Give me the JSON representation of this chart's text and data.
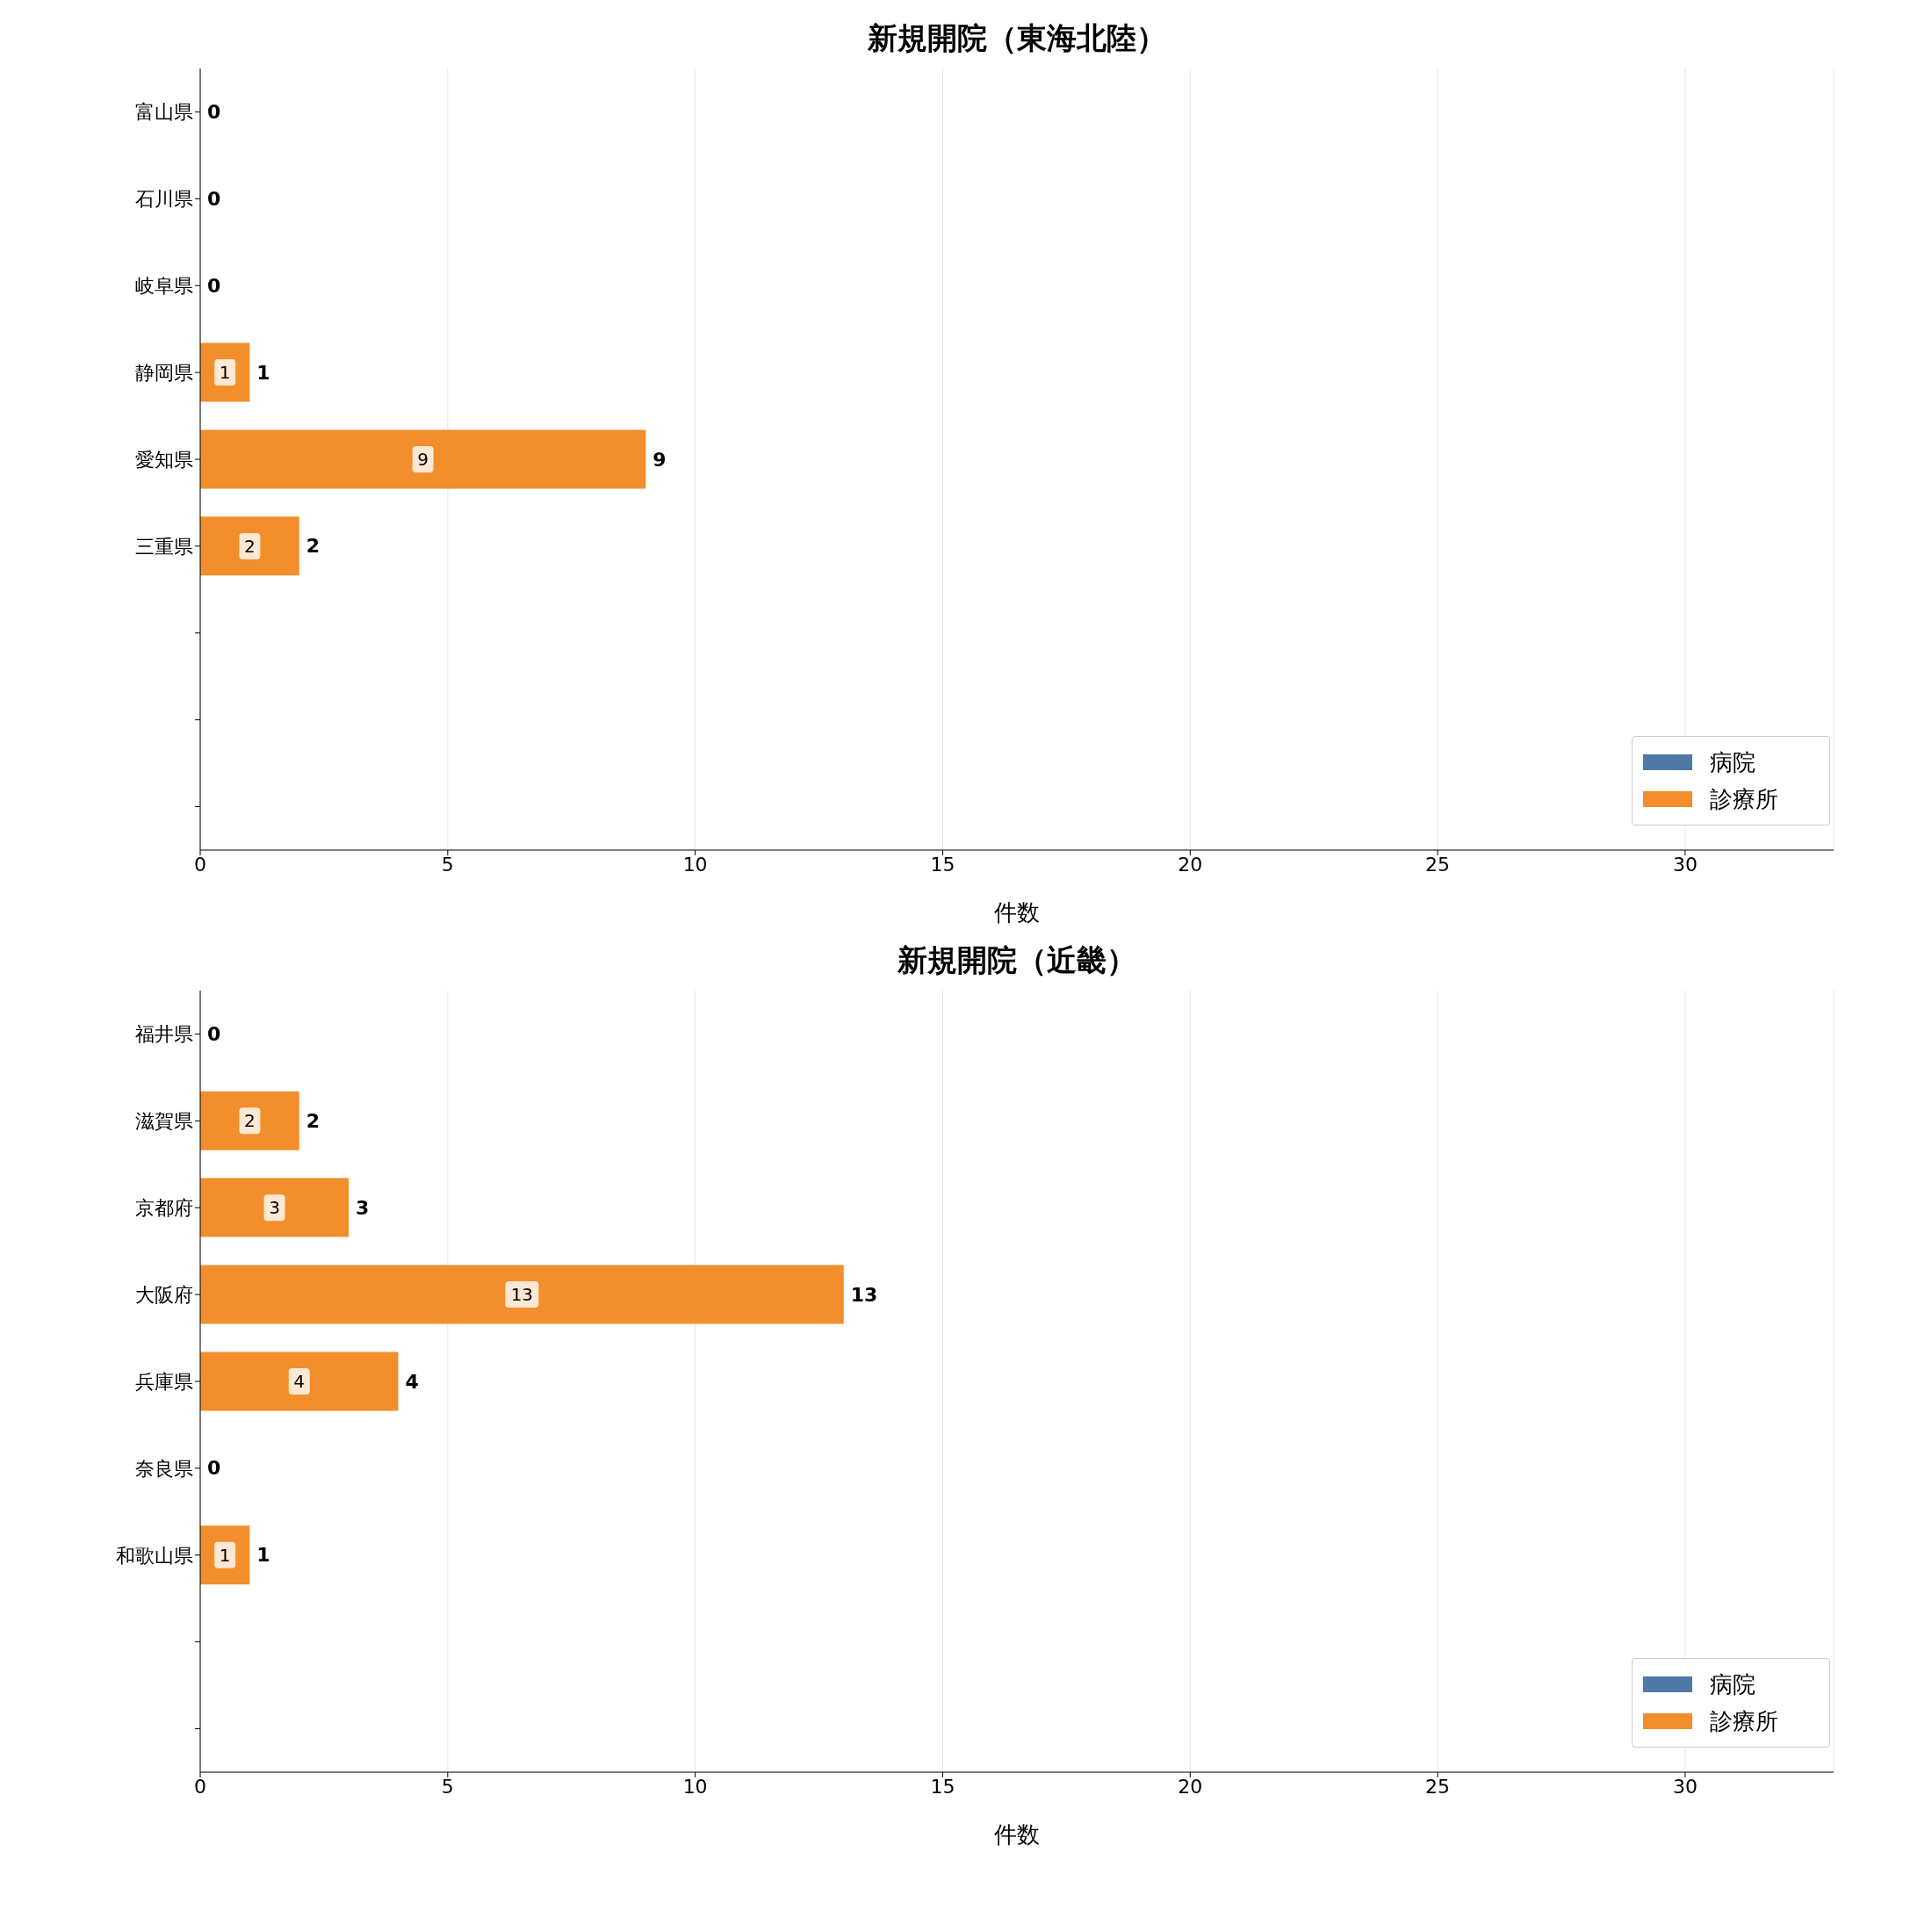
{
  "chart_data": [
    {
      "type": "bar",
      "orientation": "horizontal",
      "stacked": true,
      "title": "新規開院（東海北陸）",
      "xlabel": "件数",
      "categories": [
        "富山県",
        "石川県",
        "岐阜県",
        "静岡県",
        "愛知県",
        "三重県",
        null,
        null,
        null
      ],
      "series": [
        {
          "name": "病院",
          "color": "#4e79a7",
          "values": [
            0,
            0,
            0,
            0,
            0,
            0,
            null,
            null,
            null
          ]
        },
        {
          "name": "診療所",
          "color": "#f28e2b",
          "values": [
            0,
            0,
            0,
            1,
            9,
            2,
            null,
            null,
            null
          ],
          "value_labels": [
            null,
            null,
            null,
            "1",
            "9",
            "2",
            null,
            null,
            null
          ]
        }
      ],
      "totals": [
        "0",
        "0",
        "0",
        "1",
        "9",
        "2",
        null,
        null,
        null
      ],
      "xlim": [
        0,
        33
      ],
      "xticks": [
        0,
        5,
        10,
        15,
        20,
        25,
        30
      ],
      "grid": "x",
      "legend": "bottom right"
    },
    {
      "type": "bar",
      "orientation": "horizontal",
      "stacked": true,
      "title": "新規開院（近畿）",
      "xlabel": "件数",
      "categories": [
        "福井県",
        "滋賀県",
        "京都府",
        "大阪府",
        "兵庫県",
        "奈良県",
        "和歌山県",
        null,
        null
      ],
      "series": [
        {
          "name": "病院",
          "color": "#4e79a7",
          "values": [
            0,
            0,
            0,
            0,
            0,
            0,
            0,
            null,
            null
          ]
        },
        {
          "name": "診療所",
          "color": "#f28e2b",
          "values": [
            0,
            2,
            3,
            13,
            4,
            0,
            1,
            null,
            null
          ],
          "value_labels": [
            null,
            "2",
            "3",
            "13",
            "4",
            null,
            "1",
            null,
            null
          ]
        }
      ],
      "totals": [
        "0",
        "2",
        "3",
        "13",
        "4",
        "0",
        "1",
        null,
        null
      ],
      "xlim": [
        0,
        33
      ],
      "xticks": [
        0,
        5,
        10,
        15,
        20,
        25,
        30
      ],
      "grid": "x",
      "legend": "bottom right"
    }
  ]
}
